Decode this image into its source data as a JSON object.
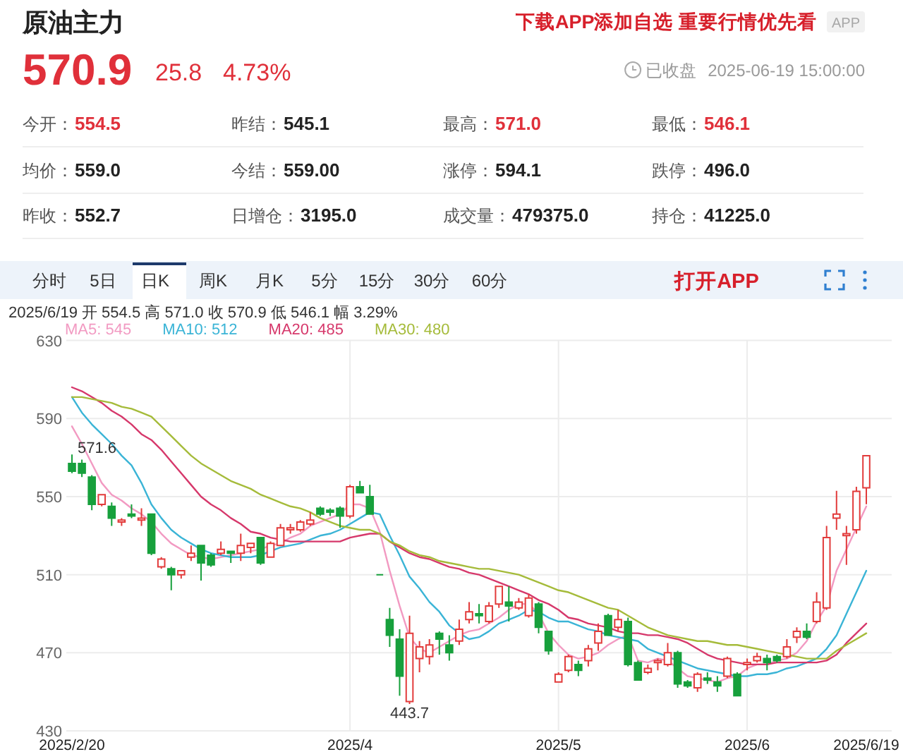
{
  "chart_data": [
    {
      "type": "other",
      "title": "原油主力",
      "annotations": [
        "570.9",
        "25.8",
        "4.73%",
        "已收盘",
        "2025-06-19 15:00:00",
        "下载APP添加自选 重要行情优先看",
        "APP",
        "今开：",
        "554.5",
        "昨结：",
        "545.1",
        "最高：",
        "571.0",
        "最低：",
        "546.1",
        "均价：",
        "559.0",
        "今结：",
        "559.00",
        "涨停：",
        "594.1",
        "跌停：",
        "496.0",
        "昨收：",
        "552.7",
        "日增仓：",
        "3195.0",
        "成交量：",
        "479375.0",
        "持仓：",
        "41225.0",
        "分时",
        "5日",
        "日K",
        "周K",
        "月K",
        "5分",
        "15分",
        "30分",
        "60分",
        "打开APP"
      ]
    },
    {
      "type": "candlestick",
      "categories": [
        "2025/2/20",
        null,
        null,
        null,
        null,
        null,
        null,
        null,
        null,
        null,
        null,
        null,
        null,
        null,
        null,
        null,
        null,
        null,
        null,
        null,
        null,
        null,
        null,
        null,
        null,
        null,
        null,
        null,
        "2025/4",
        null,
        null,
        null,
        null,
        null,
        null,
        null,
        null,
        null,
        null,
        null,
        null,
        null,
        null,
        null,
        null,
        null,
        null,
        null,
        null,
        "2025/5",
        null,
        null,
        null,
        null,
        null,
        null,
        null,
        null,
        null,
        null,
        null,
        null,
        null,
        null,
        null,
        null,
        null,
        null,
        "2025/6",
        null,
        null,
        null,
        null,
        null,
        null,
        null,
        null,
        null,
        null,
        null,
        "2025/6/19"
      ],
      "ohlc": [
        [
          567,
          571.6,
          562,
          563
        ],
        [
          567,
          569,
          560,
          562
        ],
        [
          560,
          561,
          543,
          546
        ],
        [
          546,
          551,
          545,
          551
        ],
        [
          545,
          547,
          535,
          539
        ],
        [
          537,
          539,
          535,
          538
        ],
        [
          541,
          546,
          539,
          540
        ],
        [
          538,
          544,
          535,
          539
        ],
        [
          541,
          541,
          520,
          521
        ],
        [
          514,
          519,
          513,
          518
        ],
        [
          513,
          514,
          502,
          510
        ],
        [
          510,
          512,
          508,
          512
        ],
        [
          519,
          525,
          517,
          521
        ],
        [
          525,
          525,
          507,
          516
        ],
        [
          520,
          521,
          514,
          515
        ],
        [
          521,
          527,
          520,
          523
        ],
        [
          522,
          522,
          516,
          521
        ],
        [
          521,
          531,
          517,
          525
        ],
        [
          524,
          526,
          521,
          526
        ],
        [
          529,
          529,
          515,
          516
        ],
        [
          519,
          527,
          519,
          526
        ],
        [
          525,
          536,
          525,
          534
        ],
        [
          533,
          536,
          531,
          534
        ],
        [
          533,
          538,
          532,
          537
        ],
        [
          536,
          542,
          535,
          538
        ],
        [
          544,
          545,
          540,
          541
        ],
        [
          543,
          544,
          540,
          542
        ],
        [
          544,
          545,
          534,
          540
        ],
        [
          540,
          556,
          539,
          555
        ],
        [
          555,
          558,
          552,
          552
        ],
        [
          550,
          556,
          541,
          541
        ],
        [
          510,
          510,
          510,
          510
        ],
        [
          487,
          493,
          473,
          479
        ],
        [
          477,
          482,
          448,
          458
        ],
        [
          445,
          489,
          443.7,
          480
        ],
        [
          467,
          476,
          460,
          473
        ],
        [
          468,
          477,
          464,
          474
        ],
        [
          480,
          481,
          469,
          477
        ],
        [
          474,
          479,
          466,
          470
        ],
        [
          476,
          487,
          474,
          482
        ],
        [
          487,
          496,
          485,
          491
        ],
        [
          490,
          495,
          485,
          489
        ],
        [
          486,
          496,
          485,
          494
        ],
        [
          495,
          504,
          493,
          504
        ],
        [
          496,
          504,
          486,
          494
        ],
        [
          493,
          498,
          492,
          496
        ],
        [
          489,
          500,
          488,
          498
        ],
        [
          495,
          496,
          480,
          483
        ],
        [
          481,
          481,
          469,
          471
        ],
        [
          455,
          460,
          455,
          459
        ],
        [
          461,
          469,
          460,
          468
        ],
        [
          464,
          466,
          458,
          461
        ],
        [
          466,
          474,
          463,
          472
        ],
        [
          475,
          485,
          471,
          481
        ],
        [
          489,
          490,
          479,
          479
        ],
        [
          483,
          492,
          481,
          487
        ],
        [
          486,
          488,
          463,
          464
        ],
        [
          465,
          466,
          456,
          456
        ],
        [
          460,
          464,
          459,
          462
        ],
        [
          465,
          467,
          461,
          466
        ],
        [
          464,
          475,
          463,
          470
        ],
        [
          470,
          471,
          452,
          454
        ],
        [
          455,
          456,
          452,
          453
        ],
        [
          452,
          460,
          450,
          459
        ],
        [
          457,
          460,
          454,
          456
        ],
        [
          455,
          458,
          450,
          453
        ],
        [
          458,
          468,
          457,
          467
        ],
        [
          459,
          460,
          448,
          448
        ],
        [
          464,
          467,
          461,
          465
        ],
        [
          466,
          470,
          465,
          468
        ],
        [
          467,
          469,
          461,
          465
        ],
        [
          468,
          469,
          465,
          466
        ],
        [
          468,
          477,
          467,
          473
        ],
        [
          478,
          483,
          475,
          481
        ],
        [
          481,
          485,
          477,
          478
        ],
        [
          486,
          501,
          485,
          496
        ],
        [
          493,
          535,
          492,
          529
        ],
        [
          539,
          553,
          533,
          541
        ],
        [
          530,
          535,
          515,
          531
        ],
        [
          533,
          555,
          531,
          552.7
        ],
        [
          554.5,
          571.0,
          546.1,
          570.9
        ]
      ],
      "colors": [
        "#17a03c",
        "#17a03c",
        "#17a03c",
        "#e23b3b",
        "#17a03c",
        "#e23b3b",
        "#17a03c",
        "#e23b3b",
        "#17a03c",
        "#e23b3b",
        "#17a03c",
        "#e23b3b",
        "#e23b3b",
        "#17a03c",
        "#17a03c",
        "#e23b3b",
        "#17a03c",
        "#e23b3b",
        "#e23b3b",
        "#17a03c",
        "#e23b3b",
        "#e23b3b",
        "#e23b3b",
        "#e23b3b",
        "#e23b3b",
        "#17a03c",
        "#17a03c",
        "#17a03c",
        "#e23b3b",
        "#17a03c",
        "#17a03c",
        "#17a03c",
        "#17a03c",
        "#17a03c",
        "#e23b3b",
        "#e23b3b",
        "#e23b3b",
        "#17a03c",
        "#17a03c",
        "#e23b3b",
        "#e23b3b",
        "#17a03c",
        "#e23b3b",
        "#e23b3b",
        "#17a03c",
        "#e23b3b",
        "#e23b3b",
        "#17a03c",
        "#17a03c",
        "#e23b3b",
        "#e23b3b",
        "#17a03c",
        "#e23b3b",
        "#e23b3b",
        "#17a03c",
        "#e23b3b",
        "#17a03c",
        "#17a03c",
        "#e23b3b",
        "#e23b3b",
        "#e23b3b",
        "#17a03c",
        "#17a03c",
        "#e23b3b",
        "#17a03c",
        "#17a03c",
        "#e23b3b",
        "#17a03c",
        "#e23b3b",
        "#e23b3b",
        "#17a03c",
        "#17a03c",
        "#e23b3b",
        "#e23b3b",
        "#17a03c",
        "#e23b3b",
        "#e23b3b",
        "#e23b3b",
        "#e23b3b",
        "#e23b3b",
        "#e23b3b"
      ],
      "series": [
        {
          "type": "line",
          "name": "MA5: 545",
          "color": "#f29ac2",
          "values": [
            586,
            577,
            567,
            557,
            551,
            548,
            544,
            541,
            537,
            531,
            526,
            523,
            520,
            519,
            518,
            519,
            520,
            521,
            522,
            523,
            525,
            526,
            529,
            531,
            535,
            537,
            539,
            541,
            546,
            546,
            544,
            532,
            512,
            494,
            478,
            472,
            470,
            473,
            476,
            479,
            481,
            482,
            485,
            488,
            492,
            495,
            495,
            490,
            480,
            474,
            469,
            467,
            468,
            470,
            474,
            477,
            479,
            466,
            465,
            467,
            466,
            462,
            458,
            457,
            456,
            455,
            457,
            458,
            462,
            464,
            464,
            466,
            467,
            470,
            476,
            486,
            494,
            512,
            523,
            534,
            545
          ]
        },
        {
          "type": "line",
          "name": "MA10: 512",
          "color": "#3ab4d6",
          "values": [
            601,
            593,
            587,
            582,
            577,
            571,
            566,
            557,
            546,
            539,
            533,
            529,
            526,
            523,
            521,
            520,
            519,
            519,
            519,
            520,
            522,
            524,
            525,
            526,
            528,
            530,
            531,
            533,
            536,
            539,
            542,
            541,
            530,
            520,
            509,
            503,
            496,
            491,
            484,
            480,
            477,
            478,
            481,
            485,
            487,
            489,
            492,
            491,
            488,
            486,
            486,
            484,
            482,
            481,
            479,
            478,
            477,
            476,
            472,
            470,
            468,
            466,
            464,
            462,
            461,
            460,
            459,
            458,
            458,
            459,
            459,
            460,
            462,
            463,
            465,
            467,
            472,
            479,
            490,
            501,
            512
          ]
        },
        {
          "type": "line",
          "name": "MA20: 485",
          "color": "#d6386b",
          "values": [
            606,
            604,
            601,
            598,
            594,
            591,
            587,
            582,
            579,
            574,
            568,
            562,
            556,
            550,
            546,
            543,
            539,
            536,
            532,
            531,
            529,
            528,
            527,
            527,
            527,
            527,
            527,
            527,
            529,
            530,
            531,
            531,
            527,
            524,
            521,
            519,
            518,
            516,
            514,
            513,
            511,
            510,
            508,
            506,
            504,
            502,
            500,
            497,
            495,
            492,
            488,
            487,
            485,
            484,
            483,
            481,
            480,
            480,
            479,
            479,
            478,
            477,
            475,
            472,
            469,
            467,
            466,
            465,
            464,
            464,
            464,
            465,
            465,
            465,
            465,
            465,
            466,
            469,
            475,
            480,
            485
          ]
        },
        {
          "type": "line",
          "name": "MA30: 480",
          "color": "#a5bb3a",
          "values": [
            601,
            601,
            600,
            599,
            598,
            596,
            595,
            593,
            591,
            586,
            581,
            576,
            571,
            567,
            564,
            561,
            558,
            556,
            554,
            551,
            549,
            547,
            545,
            544,
            542,
            539,
            537,
            535,
            534,
            533,
            533,
            531,
            527,
            525,
            522,
            520,
            519,
            517,
            516,
            515,
            514,
            513,
            513,
            512,
            511,
            510,
            508,
            506,
            504,
            502,
            501,
            499,
            497,
            495,
            493,
            492,
            489,
            486,
            483,
            481,
            479,
            478,
            477,
            476,
            476,
            475,
            474,
            474,
            473,
            472,
            471,
            470,
            469,
            468,
            467,
            467,
            467,
            471,
            474,
            477,
            480
          ]
        }
      ],
      "ylim": [
        430,
        630
      ],
      "yticks": [
        430,
        470,
        510,
        550,
        590,
        630
      ],
      "grid": true,
      "legend": "top left",
      "annotations": [
        "2025/6/19 开 554.5 高 571.0 收 570.9 低 546.1 幅 3.29%",
        {
          "text": "571.6",
          "x": "2025/2/20",
          "y": 571.6
        },
        {
          "text": "443.7",
          "y": 443.7
        }
      ]
    }
  ]
}
